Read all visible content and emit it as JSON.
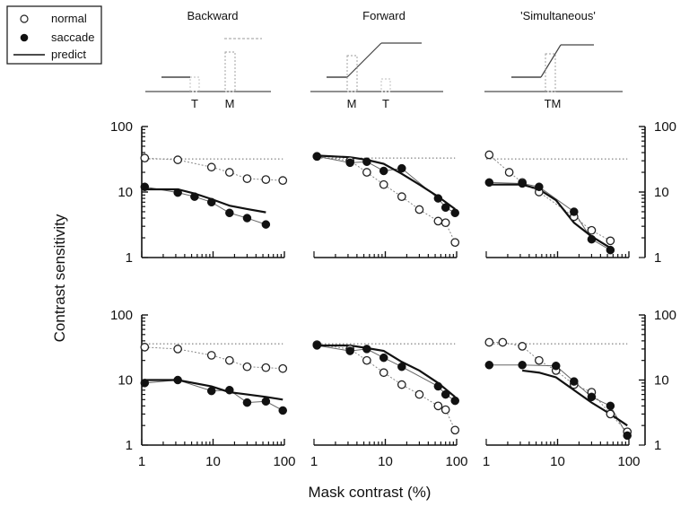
{
  "chart_data": {
    "type": "scatter",
    "xlabel": "Mask contrast (%)",
    "ylabel": "Contrast sensitivity",
    "xscale": "log",
    "yscale": "log",
    "xlim": [
      1,
      100
    ],
    "ylim": [
      1,
      100
    ],
    "x_ticks": [
      "1",
      "10",
      "100"
    ],
    "y_ticks": [
      "1",
      "10",
      "100"
    ],
    "legend": {
      "position": "top-left",
      "entries": [
        {
          "label": "normal",
          "marker": "open-circle"
        },
        {
          "label": "saccade",
          "marker": "filled-circle"
        },
        {
          "label": "predict",
          "marker": "solid-line"
        }
      ]
    },
    "columns": [
      "Backward",
      "Forward",
      "'Simultaneous'"
    ],
    "schematics": [
      {
        "labels": [
          "T",
          "M"
        ]
      },
      {
        "labels": [
          "M",
          "T"
        ]
      },
      {
        "labels": [
          "TM"
        ]
      }
    ],
    "panels": [
      {
        "column": "Backward",
        "normal": {
          "x": [
            1.1,
            3.2,
            9.5,
            17,
            30,
            55,
            95
          ],
          "y": [
            33,
            31,
            24,
            20,
            16,
            15.5,
            15
          ]
        },
        "saccade": {
          "x": [
            1.1,
            3.2,
            5.5,
            9.5,
            17,
            30,
            55
          ],
          "y": [
            12,
            9.8,
            8.5,
            7,
            4.8,
            4,
            3.2
          ]
        },
        "predict": {
          "x": [
            1.1,
            3.2,
            5.5,
            9.5,
            17,
            30,
            55
          ],
          "y": [
            11,
            11,
            9.5,
            7.8,
            6.2,
            5.5,
            4.9
          ]
        },
        "baseline": 32
      },
      {
        "column": "Forward",
        "normal": {
          "x": [
            1.1,
            3.2,
            5.5,
            9.5,
            17,
            30,
            55,
            70,
            95
          ],
          "y": [
            35,
            30,
            20,
            13,
            8.5,
            5.4,
            3.6,
            3.4,
            1.7
          ]
        },
        "saccade": {
          "x": [
            1.1,
            3.2,
            5.5,
            9.5,
            17,
            55,
            70,
            95
          ],
          "y": [
            35,
            28,
            29,
            21,
            23,
            8,
            5.8,
            4.8
          ]
        },
        "predict": {
          "x": [
            1.1,
            3.2,
            5.5,
            9.5,
            17,
            30,
            55,
            95
          ],
          "y": [
            36,
            34,
            31,
            27,
            19,
            13,
            8.5,
            5.5
          ]
        },
        "baseline": 33
      },
      {
        "column": "'Simultaneous'",
        "normal": {
          "x": [
            1.1,
            2.1,
            3.2,
            5.5,
            17,
            30,
            55
          ],
          "y": [
            37,
            20,
            14,
            10,
            4.2,
            2.6,
            1.8
          ]
        },
        "saccade": {
          "x": [
            1.1,
            3.2,
            5.5,
            17,
            30,
            55
          ],
          "y": [
            14,
            13.5,
            12,
            5,
            1.9,
            1.3
          ]
        },
        "predict": {
          "x": [
            1.1,
            3.2,
            5.5,
            9.5,
            17,
            30,
            55
          ],
          "y": [
            13,
            13,
            11,
            7.5,
            3.4,
            2.1,
            1.4
          ]
        },
        "baseline": 32
      },
      {
        "column": "Backward",
        "normal": {
          "x": [
            1.1,
            3.2,
            9.5,
            17,
            30,
            55,
            95
          ],
          "y": [
            32,
            30,
            24,
            20,
            16,
            15.5,
            15
          ]
        },
        "saccade": {
          "x": [
            1.1,
            3.2,
            9.5,
            17,
            30,
            55,
            95
          ],
          "y": [
            9,
            10,
            6.8,
            7,
            4.5,
            4.7,
            3.4
          ]
        },
        "predict": {
          "x": [
            1.1,
            3.2,
            9.5,
            17,
            30,
            55,
            95
          ],
          "y": [
            10,
            10,
            8,
            6.5,
            6,
            5.5,
            5
          ]
        },
        "baseline": 36
      },
      {
        "column": "Forward",
        "normal": {
          "x": [
            1.1,
            3.2,
            5.5,
            9.5,
            17,
            30,
            55,
            70,
            95
          ],
          "y": [
            35,
            30,
            20,
            13,
            8.5,
            6,
            4,
            3.5,
            1.7
          ]
        },
        "saccade": {
          "x": [
            1.1,
            3.2,
            5.5,
            9.5,
            17,
            55,
            70,
            95
          ],
          "y": [
            34,
            28,
            30,
            22,
            16,
            8,
            6,
            4.8
          ]
        },
        "predict": {
          "x": [
            1.1,
            3.2,
            5.5,
            9.5,
            17,
            30,
            55,
            95
          ],
          "y": [
            34,
            34,
            31,
            28,
            19,
            14,
            9,
            5.5
          ]
        },
        "baseline": 36
      },
      {
        "column": "'Simultaneous'",
        "normal": {
          "x": [
            1.1,
            1.7,
            3.2,
            5.5,
            9.5,
            17,
            30,
            55,
            95
          ],
          "y": [
            38,
            38,
            33,
            20,
            14,
            8.5,
            6.5,
            3,
            1.6
          ]
        },
        "saccade": {
          "x": [
            1.1,
            3.2,
            9.5,
            17,
            30,
            55,
            95
          ],
          "y": [
            17,
            17,
            16.5,
            9.5,
            5.5,
            4,
            1.4
          ]
        },
        "predict": {
          "x": [
            3.2,
            5.5,
            9.5,
            17,
            30,
            55,
            95
          ],
          "y": [
            14,
            13,
            11,
            7,
            4.5,
            3,
            2
          ]
        },
        "baseline": 36
      }
    ]
  }
}
